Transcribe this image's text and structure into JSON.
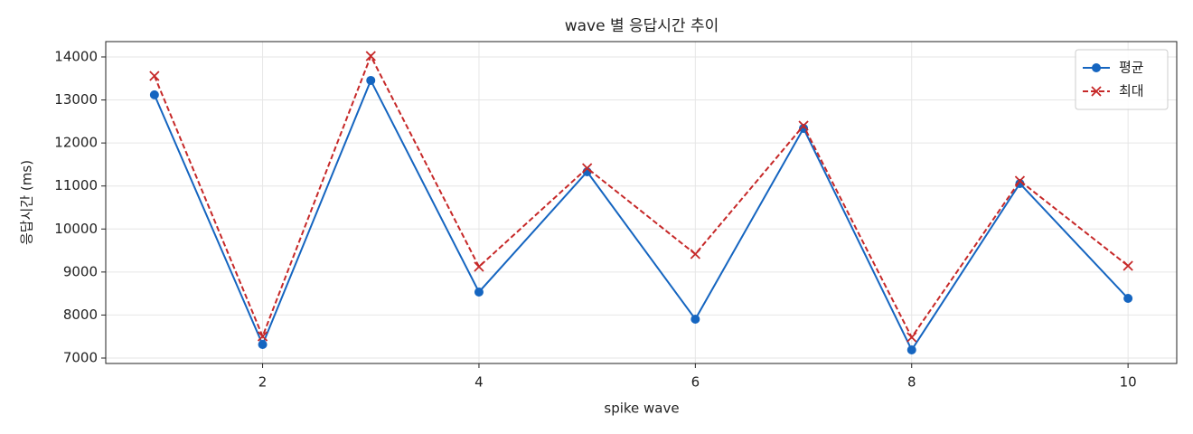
{
  "chart_data": {
    "type": "line",
    "title": "wave 별 응답시간 추이",
    "x_label": "spike wave",
    "y_label": "응답시간 (ms)",
    "x": [
      1,
      2,
      3,
      4,
      5,
      6,
      7,
      8,
      9,
      10
    ],
    "series": [
      {
        "name": "평균",
        "color": "#1565c0",
        "linestyle": "solid",
        "marker": "o",
        "values": [
          13120,
          7315,
          13454,
          8535,
          11330,
          7904,
          12340,
          7189,
          11057,
          8387
        ]
      },
      {
        "name": "최대",
        "color": "#c62828",
        "linestyle": "dashed",
        "marker": "x",
        "values": [
          13559,
          7505,
          14021,
          9123,
          11415,
          9417,
          12403,
          7483,
          11120,
          9144
        ]
      }
    ],
    "xlim": [
      0.55,
      10.45
    ],
    "xticks": [
      2,
      4,
      6,
      8,
      10
    ],
    "ylim": [
      6874,
      14357
    ],
    "yticks": [
      7000,
      8000,
      9000,
      10000,
      11000,
      12000,
      13000,
      14000
    ],
    "grid": true,
    "legend": "upper right"
  }
}
